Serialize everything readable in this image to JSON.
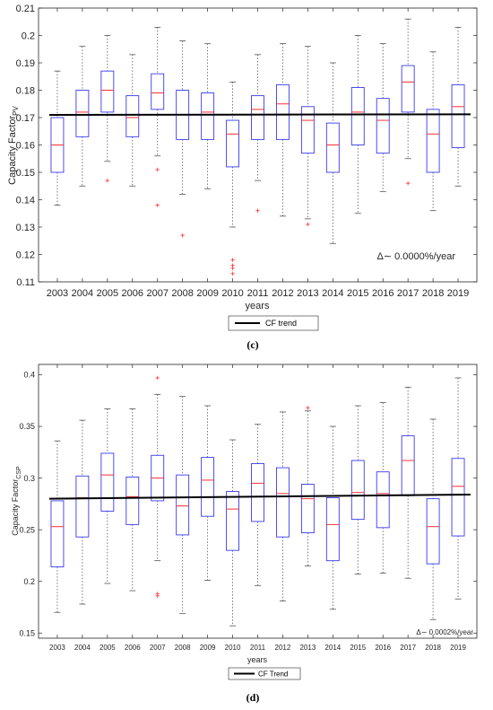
{
  "chart_data": [
    {
      "type": "box",
      "panel_label": "(c)",
      "ylabel_main": "Capacity Factor",
      "ylabel_sub": "PV",
      "xlabel": "years",
      "ylim": [
        0.11,
        0.21
      ],
      "yticks": [
        0.11,
        0.12,
        0.13,
        0.14,
        0.15,
        0.16,
        0.17,
        0.18,
        0.19,
        0.2,
        0.21
      ],
      "ytick_labels": [
        "0.11",
        "0.12",
        "0.13",
        "0.14",
        "0.15",
        "0.16",
        "0.17",
        "0.18",
        "0.19",
        "0.2",
        "0.21"
      ],
      "annotation": "Δ∼ 0.0000%/year",
      "legend": "CF trend",
      "trend": [
        0.171,
        0.1712
      ],
      "categories": [
        "2003",
        "2004",
        "2005",
        "2006",
        "2007",
        "2008",
        "2009",
        "2010",
        "2011",
        "2012",
        "2013",
        "2014",
        "2015",
        "2016",
        "2017",
        "2018",
        "2019"
      ],
      "boxes": [
        {
          "wl": 0.138,
          "q1": 0.15,
          "med": 0.16,
          "q3": 0.17,
          "wh": 0.187,
          "outliers": []
        },
        {
          "wl": 0.145,
          "q1": 0.163,
          "med": 0.172,
          "q3": 0.18,
          "wh": 0.196,
          "outliers": []
        },
        {
          "wl": 0.154,
          "q1": 0.172,
          "med": 0.18,
          "q3": 0.187,
          "wh": 0.2,
          "outliers": [
            0.147
          ]
        },
        {
          "wl": 0.145,
          "q1": 0.163,
          "med": 0.17,
          "q3": 0.178,
          "wh": 0.193,
          "outliers": []
        },
        {
          "wl": 0.156,
          "q1": 0.173,
          "med": 0.179,
          "q3": 0.186,
          "wh": 0.203,
          "outliers": [
            0.151,
            0.138
          ]
        },
        {
          "wl": 0.142,
          "q1": 0.162,
          "med": 0.171,
          "q3": 0.18,
          "wh": 0.198,
          "outliers": [
            0.127
          ]
        },
        {
          "wl": 0.144,
          "q1": 0.162,
          "med": 0.172,
          "q3": 0.179,
          "wh": 0.197,
          "outliers": []
        },
        {
          "wl": 0.13,
          "q1": 0.152,
          "med": 0.164,
          "q3": 0.169,
          "wh": 0.183,
          "outliers": [
            0.118,
            0.116,
            0.115,
            0.113
          ]
        },
        {
          "wl": 0.147,
          "q1": 0.162,
          "med": 0.173,
          "q3": 0.178,
          "wh": 0.193,
          "outliers": [
            0.136
          ]
        },
        {
          "wl": 0.134,
          "q1": 0.162,
          "med": 0.175,
          "q3": 0.182,
          "wh": 0.197,
          "outliers": []
        },
        {
          "wl": 0.133,
          "q1": 0.157,
          "med": 0.169,
          "q3": 0.174,
          "wh": 0.196,
          "outliers": [
            0.131
          ]
        },
        {
          "wl": 0.124,
          "q1": 0.15,
          "med": 0.16,
          "q3": 0.168,
          "wh": 0.19,
          "outliers": []
        },
        {
          "wl": 0.135,
          "q1": 0.16,
          "med": 0.172,
          "q3": 0.181,
          "wh": 0.2,
          "outliers": []
        },
        {
          "wl": 0.143,
          "q1": 0.157,
          "med": 0.169,
          "q3": 0.177,
          "wh": 0.197,
          "outliers": []
        },
        {
          "wl": 0.155,
          "q1": 0.172,
          "med": 0.183,
          "q3": 0.189,
          "wh": 0.206,
          "outliers": [
            0.146
          ]
        },
        {
          "wl": 0.136,
          "q1": 0.15,
          "med": 0.164,
          "q3": 0.173,
          "wh": 0.194,
          "outliers": []
        },
        {
          "wl": 0.145,
          "q1": 0.159,
          "med": 0.174,
          "q3": 0.182,
          "wh": 0.203,
          "outliers": []
        }
      ]
    },
    {
      "type": "box",
      "panel_label": "(d)",
      "ylabel_main": "Capacity Factor",
      "ylabel_sub": "CSP",
      "xlabel": "years",
      "ylim": [
        0.145,
        0.41
      ],
      "yticks": [
        0.15,
        0.2,
        0.25,
        0.3,
        0.35,
        0.4
      ],
      "ytick_labels": [
        "0.15",
        "0.2",
        "0.25",
        "0.3",
        "0.35",
        "0.4"
      ],
      "annotation": "Δ∼ 0.0002%/year",
      "legend": "CF Trend",
      "trend": [
        0.28,
        0.284
      ],
      "categories": [
        "2003",
        "2004",
        "2005",
        "2006",
        "2007",
        "2008",
        "2009",
        "2010",
        "2011",
        "2012",
        "2013",
        "2014",
        "2015",
        "2016",
        "2017",
        "2018",
        "2019"
      ],
      "boxes": [
        {
          "wl": 0.17,
          "q1": 0.214,
          "med": 0.253,
          "q3": 0.278,
          "wh": 0.336,
          "outliers": []
        },
        {
          "wl": 0.178,
          "q1": 0.243,
          "med": 0.281,
          "q3": 0.302,
          "wh": 0.356,
          "outliers": []
        },
        {
          "wl": 0.198,
          "q1": 0.268,
          "med": 0.303,
          "q3": 0.324,
          "wh": 0.367,
          "outliers": []
        },
        {
          "wl": 0.191,
          "q1": 0.255,
          "med": 0.282,
          "q3": 0.301,
          "wh": 0.367,
          "outliers": []
        },
        {
          "wl": 0.22,
          "q1": 0.278,
          "med": 0.3,
          "q3": 0.322,
          "wh": 0.381,
          "outliers": [
            0.397,
            0.188,
            0.186
          ]
        },
        {
          "wl": 0.169,
          "q1": 0.245,
          "med": 0.273,
          "q3": 0.303,
          "wh": 0.379,
          "outliers": []
        },
        {
          "wl": 0.201,
          "q1": 0.263,
          "med": 0.298,
          "q3": 0.32,
          "wh": 0.37,
          "outliers": []
        },
        {
          "wl": 0.157,
          "q1": 0.23,
          "med": 0.27,
          "q3": 0.287,
          "wh": 0.337,
          "outliers": []
        },
        {
          "wl": 0.196,
          "q1": 0.258,
          "med": 0.295,
          "q3": 0.314,
          "wh": 0.352,
          "outliers": []
        },
        {
          "wl": 0.181,
          "q1": 0.243,
          "med": 0.285,
          "q3": 0.31,
          "wh": 0.364,
          "outliers": []
        },
        {
          "wl": 0.215,
          "q1": 0.247,
          "med": 0.28,
          "q3": 0.294,
          "wh": 0.365,
          "outliers": [
            0.368
          ]
        },
        {
          "wl": 0.173,
          "q1": 0.22,
          "med": 0.255,
          "q3": 0.281,
          "wh": 0.35,
          "outliers": []
        },
        {
          "wl": 0.207,
          "q1": 0.26,
          "med": 0.286,
          "q3": 0.317,
          "wh": 0.37,
          "outliers": []
        },
        {
          "wl": 0.208,
          "q1": 0.252,
          "med": 0.285,
          "q3": 0.306,
          "wh": 0.373,
          "outliers": []
        },
        {
          "wl": 0.203,
          "q1": 0.283,
          "med": 0.317,
          "q3": 0.341,
          "wh": 0.388,
          "outliers": []
        },
        {
          "wl": 0.163,
          "q1": 0.217,
          "med": 0.253,
          "q3": 0.28,
          "wh": 0.357,
          "outliers": []
        },
        {
          "wl": 0.183,
          "q1": 0.244,
          "med": 0.292,
          "q3": 0.319,
          "wh": 0.397,
          "outliers": []
        }
      ]
    }
  ],
  "colors": {
    "box": "#3a3af0",
    "median": "#ff3030",
    "outlier": "#ff3030",
    "whisker": "#3a3af0",
    "trend": "#000000",
    "axis": "#262626"
  }
}
